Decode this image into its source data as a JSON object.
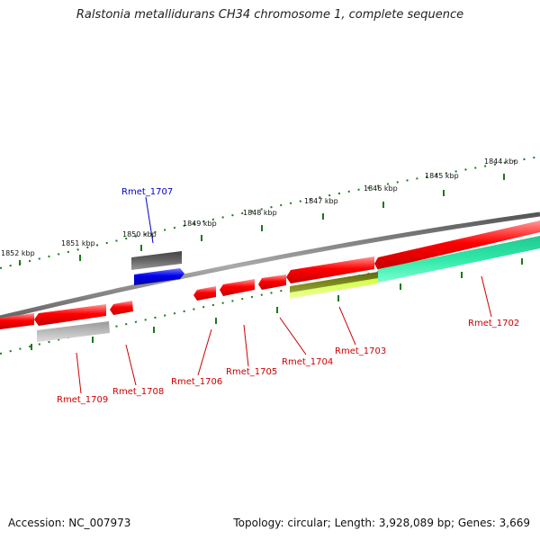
{
  "title": "Ralstonia metallidurans CH34 chromosome 1, complete sequence",
  "footer": {
    "accession": "Accession: NC_007973",
    "summary": "Topology: circular; Length: 3,928,089 bp; Genes: 3,669"
  },
  "ticks": [
    "1852 kbp",
    "1851 kbp",
    "1850 kbp",
    "1849 kbp",
    "1848 kbp",
    "1847 kbp",
    "1846 kbp",
    "1845 kbp",
    "1844 kbp"
  ],
  "genes": [
    "Rmet_1707",
    "Rmet_1709",
    "Rmet_1708",
    "Rmet_1706",
    "Rmet_1705",
    "Rmet_1704",
    "Rmet_1703",
    "Rmet_1702"
  ],
  "colors": {
    "forward_gene": "#ff0000",
    "reverse_gene_highlight": "#0000ee",
    "backbone": "#777777",
    "tick": "#1a7a1a",
    "label_red": "#cc0000",
    "label_blue": "#0000cc"
  }
}
